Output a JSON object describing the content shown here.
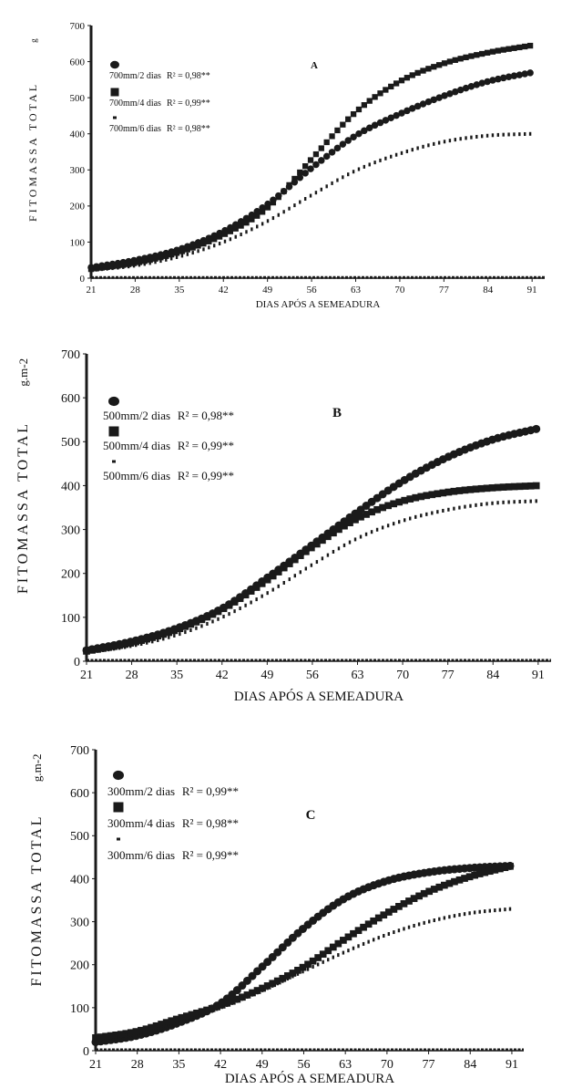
{
  "figure": {
    "bg": "#ffffff",
    "ink": "#1a1a1a"
  },
  "chart_data": [
    {
      "type": "scatter",
      "panel_label": "A",
      "ylabel": "FITOMASSA TOTAL",
      "ylabel_unit": "g",
      "xlabel": "DIAS APÓS A SEMEADURA",
      "xlim": [
        21,
        93
      ],
      "ylim": [
        0,
        700
      ],
      "xticks": [
        21,
        28,
        35,
        42,
        49,
        56,
        63,
        70,
        77,
        84,
        91
      ],
      "yticks": [
        0,
        100,
        200,
        300,
        400,
        500,
        600,
        700
      ],
      "grid": false,
      "legend_position": "top-left",
      "series": [
        {
          "name": "700mm/2 dias",
          "r2": "R² = 0,98**",
          "marker": "circle",
          "x": [
            21,
            28,
            35,
            42,
            49,
            56,
            63,
            70,
            77,
            84,
            91
          ],
          "y": [
            30,
            50,
            80,
            130,
            205,
            305,
            395,
            455,
            505,
            545,
            570
          ]
        },
        {
          "name": "700mm/4 dias",
          "r2": "R² = 0,99**",
          "marker": "square",
          "x": [
            21,
            28,
            35,
            42,
            49,
            56,
            63,
            70,
            77,
            84,
            91
          ],
          "y": [
            25,
            42,
            72,
            120,
            195,
            330,
            460,
            545,
            595,
            625,
            645
          ]
        },
        {
          "name": "700mm/6 dias",
          "r2": "R² = 0,98**",
          "marker": "dash",
          "x": [
            21,
            28,
            35,
            42,
            49,
            56,
            63,
            70,
            77,
            84,
            91
          ],
          "y": [
            22,
            35,
            60,
            100,
            158,
            230,
            298,
            345,
            378,
            395,
            400
          ]
        }
      ]
    },
    {
      "type": "scatter",
      "panel_label": "B",
      "ylabel": "FITOMASSA TOTAL",
      "ylabel_unit": "g.m-2",
      "xlabel": "DIAS APÓS A SEMEADURA",
      "xlim": [
        21,
        93
      ],
      "ylim": [
        0,
        700
      ],
      "xticks": [
        21,
        28,
        35,
        42,
        49,
        56,
        63,
        70,
        77,
        84,
        91
      ],
      "yticks": [
        0,
        100,
        200,
        300,
        400,
        500,
        600,
        700
      ],
      "grid": false,
      "legend_position": "top-left",
      "series": [
        {
          "name": "500mm/2 dias",
          "r2": "R² = 0,98**",
          "marker": "circle",
          "x": [
            21,
            28,
            35,
            42,
            49,
            56,
            63,
            70,
            77,
            84,
            91
          ],
          "y": [
            25,
            45,
            75,
            120,
            190,
            265,
            340,
            410,
            465,
            505,
            530
          ]
        },
        {
          "name": "500mm/4 dias",
          "r2": "R² = 0,99**",
          "marker": "square",
          "x": [
            21,
            28,
            35,
            42,
            49,
            56,
            63,
            70,
            77,
            84,
            91
          ],
          "y": [
            23,
            42,
            72,
            118,
            185,
            260,
            325,
            365,
            385,
            395,
            400
          ]
        },
        {
          "name": "500mm/6 dias",
          "r2": "R² = 0,99**",
          "marker": "dash",
          "x": [
            21,
            28,
            35,
            42,
            49,
            56,
            63,
            70,
            77,
            84,
            91
          ],
          "y": [
            20,
            35,
            60,
            100,
            155,
            220,
            280,
            320,
            345,
            360,
            365
          ]
        }
      ]
    },
    {
      "type": "scatter",
      "panel_label": "C",
      "ylabel": "FITOMASSA TOTAL",
      "ylabel_unit": "g.m-2",
      "xlabel": "DIAS APÓS A SEMEADURA",
      "xlim": [
        21,
        93
      ],
      "ylim": [
        0,
        700
      ],
      "xticks": [
        21,
        28,
        35,
        42,
        49,
        56,
        63,
        70,
        77,
        84,
        91
      ],
      "yticks": [
        0,
        100,
        200,
        300,
        400,
        500,
        600,
        700
      ],
      "grid": false,
      "legend_position": "top-left",
      "series": [
        {
          "name": "300mm/2 dias",
          "r2": "R² = 0,99**",
          "marker": "circle",
          "x": [
            21,
            28,
            35,
            42,
            49,
            56,
            63,
            70,
            77,
            84,
            91
          ],
          "y": [
            20,
            35,
            65,
            110,
            195,
            285,
            355,
            395,
            415,
            425,
            430
          ]
        },
        {
          "name": "300mm/4 dias",
          "r2": "R² = 0,98**",
          "marker": "square",
          "x": [
            21,
            28,
            35,
            42,
            49,
            56,
            63,
            70,
            77,
            84,
            91
          ],
          "y": [
            30,
            45,
            75,
            105,
            145,
            195,
            260,
            320,
            370,
            405,
            430
          ]
        },
        {
          "name": "300mm/6 dias",
          "r2": "R² = 0,99**",
          "marker": "dash",
          "x": [
            21,
            28,
            35,
            42,
            49,
            56,
            63,
            70,
            77,
            84,
            91
          ],
          "y": [
            25,
            40,
            65,
            100,
            140,
            185,
            230,
            270,
            300,
            320,
            330
          ]
        }
      ]
    }
  ]
}
